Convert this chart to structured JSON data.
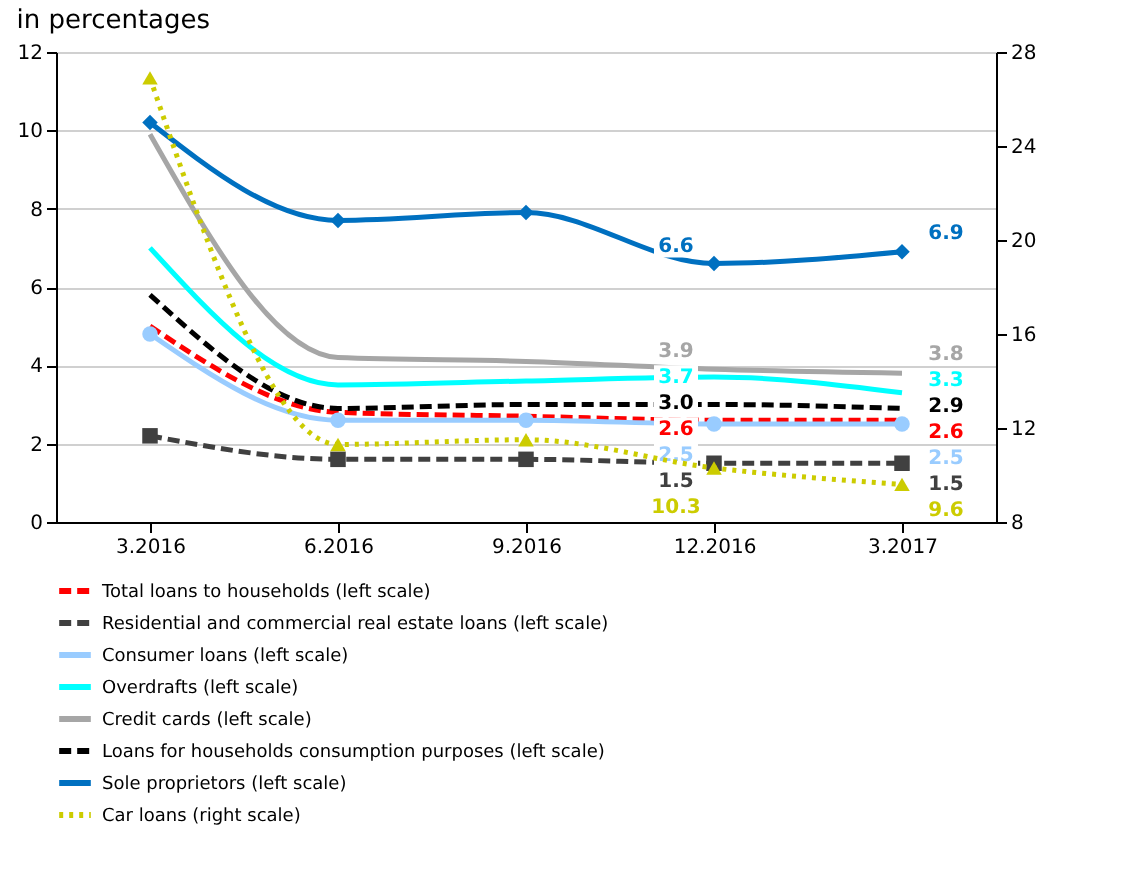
{
  "chart_data": {
    "type": "line",
    "title": "in percentages",
    "categories": [
      "3.2016",
      "6.2016",
      "9.2016",
      "12.2016",
      "3.2017"
    ],
    "ylim": [
      0,
      12
    ],
    "yticks": [
      0,
      2,
      4,
      6,
      8,
      10,
      12
    ],
    "y2lim": [
      8,
      28
    ],
    "y2ticks": [
      8,
      12,
      16,
      20,
      24,
      28
    ],
    "grid": "y",
    "legend": "bottom",
    "series": [
      {
        "name": "Total loans to households (left scale)",
        "color": "#ff0000",
        "line_style": "dashed",
        "marker": "none",
        "values": [
          5.0,
          2.8,
          2.7,
          2.6,
          2.6
        ],
        "value_labels": [
          null,
          null,
          null,
          "2.6",
          "2.6"
        ]
      },
      {
        "name": "Residential and commercial real estate loans (left scale)",
        "color": "#404040",
        "line_style": "dashed",
        "marker": "square",
        "values": [
          2.2,
          1.6,
          1.6,
          1.5,
          1.5
        ],
        "value_labels": [
          null,
          null,
          null,
          "1.5",
          "1.5"
        ]
      },
      {
        "name": "Consumer loans (left scale)",
        "color": "#99ccff",
        "line_style": "solid",
        "marker": "circle",
        "values": [
          4.8,
          2.6,
          2.6,
          2.5,
          2.5
        ],
        "value_labels": [
          null,
          null,
          null,
          "2.5",
          "2.5"
        ]
      },
      {
        "name": "Overdrafts (left scale)",
        "color": "#00ffff",
        "line_style": "solid",
        "marker": "none",
        "values": [
          7.0,
          3.5,
          3.6,
          3.7,
          3.3
        ],
        "value_labels": [
          null,
          null,
          null,
          "3.7",
          "3.3"
        ]
      },
      {
        "name": "Credit cards (left scale)",
        "color": "#a6a6a6",
        "line_style": "solid",
        "marker": "none",
        "values": [
          9.9,
          4.2,
          4.1,
          3.9,
          3.8
        ],
        "value_labels": [
          null,
          null,
          null,
          "3.9",
          "3.8"
        ]
      },
      {
        "name": "Loans for households consumption purposes (left scale)",
        "color": "#000000",
        "line_style": "dashed",
        "marker": "none",
        "values": [
          5.8,
          2.9,
          3.0,
          3.0,
          2.9
        ],
        "value_labels": [
          null,
          null,
          null,
          "3.0",
          "2.9"
        ]
      },
      {
        "name": "Sole proprietors (left scale)",
        "color": "#0070c0",
        "line_style": "solid",
        "marker": "diamond",
        "values": [
          10.2,
          7.7,
          7.9,
          6.6,
          6.9
        ],
        "value_labels": [
          null,
          null,
          null,
          "6.6",
          "6.9"
        ]
      },
      {
        "name": "Car loans (right scale)",
        "color": "#cccc00",
        "line_style": "dotted",
        "marker": "triangle",
        "axis": "y2",
        "values": [
          26.9,
          11.3,
          11.5,
          10.3,
          9.6
        ],
        "value_labels": [
          null,
          null,
          null,
          "10.3",
          "9.6"
        ]
      }
    ]
  }
}
